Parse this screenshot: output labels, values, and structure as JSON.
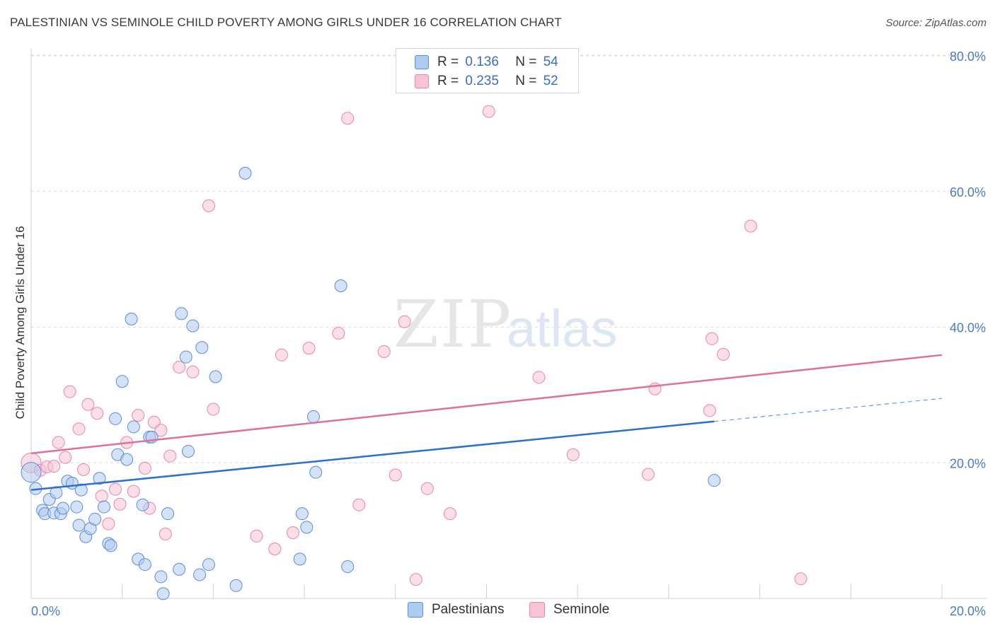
{
  "title": "PALESTINIAN VS SEMINOLE CHILD POVERTY AMONG GIRLS UNDER 16 CORRELATION CHART",
  "source": "Source: ZipAtlas.com",
  "watermark": {
    "zip": "ZIP",
    "atlas": "atlas"
  },
  "legend": {
    "rows": [
      {
        "r_label": "R =",
        "r_value": "0.136",
        "n_label": "N =",
        "n_value": "54"
      },
      {
        "r_label": "R =",
        "r_value": "0.235",
        "n_label": "N =",
        "n_value": "52"
      }
    ]
  },
  "bottom_legend": [
    "Palestinians",
    "Seminole"
  ],
  "colors": {
    "blue_fill": "#aecbf0",
    "blue_stroke": "#5a8fd6",
    "blue_line": "#2f6fd0",
    "pink_fill": "#f8c3d3",
    "pink_stroke": "#e888a8",
    "pink_line": "#e0709a",
    "grid": "#dcdcdc",
    "tick_text": "#4a7cc9"
  },
  "chart_data": {
    "type": "scatter",
    "title": "PALESTINIAN VS SEMINOLE CHILD POVERTY AMONG GIRLS UNDER 16 CORRELATION CHART",
    "xlabel": "",
    "ylabel": "Child Poverty Among Girls Under 16",
    "xlim": [
      0,
      20
    ],
    "ylim": [
      0,
      80
    ],
    "x_tick_labels": [
      "0.0%",
      "20.0%"
    ],
    "y_ticks": [
      20,
      40,
      60,
      80
    ],
    "y_tick_labels": [
      "20.0%",
      "40.0%",
      "60.0%",
      "80.0%"
    ],
    "grid": "horizontal dashed",
    "legend_position": "top-center",
    "series": [
      {
        "name": "Palestinians",
        "r": 0.136,
        "n": 54,
        "trend": {
          "x0": 0,
          "y0": 16.0,
          "x1": 15.0,
          "y1": 26.1,
          "dash_to_x": 20,
          "dash_to_y": 29.5
        },
        "points": [
          [
            0.0,
            18.6
          ],
          [
            0.1,
            16.2
          ],
          [
            0.25,
            13.0
          ],
          [
            0.3,
            12.5
          ],
          [
            0.4,
            14.6
          ],
          [
            0.5,
            12.6
          ],
          [
            0.55,
            15.6
          ],
          [
            0.65,
            12.5
          ],
          [
            0.7,
            13.3
          ],
          [
            0.8,
            17.3
          ],
          [
            0.9,
            17.0
          ],
          [
            1.0,
            13.5
          ],
          [
            1.05,
            10.8
          ],
          [
            1.1,
            16.0
          ],
          [
            1.2,
            9.1
          ],
          [
            1.3,
            10.3
          ],
          [
            1.4,
            11.7
          ],
          [
            1.5,
            17.7
          ],
          [
            1.6,
            13.5
          ],
          [
            1.7,
            8.1
          ],
          [
            1.75,
            7.8
          ],
          [
            1.85,
            26.5
          ],
          [
            1.9,
            21.2
          ],
          [
            2.0,
            32.0
          ],
          [
            2.1,
            20.5
          ],
          [
            2.2,
            41.2
          ],
          [
            2.25,
            25.3
          ],
          [
            2.35,
            5.8
          ],
          [
            2.45,
            13.8
          ],
          [
            2.5,
            5.0
          ],
          [
            2.6,
            23.8
          ],
          [
            2.65,
            23.8
          ],
          [
            2.85,
            3.2
          ],
          [
            2.9,
            0.7
          ],
          [
            3.0,
            12.5
          ],
          [
            3.25,
            4.3
          ],
          [
            3.3,
            42.0
          ],
          [
            3.4,
            35.6
          ],
          [
            3.45,
            21.7
          ],
          [
            3.55,
            40.2
          ],
          [
            3.7,
            3.5
          ],
          [
            3.75,
            37.0
          ],
          [
            3.9,
            5.0
          ],
          [
            4.05,
            32.7
          ],
          [
            4.5,
            1.9
          ],
          [
            4.7,
            62.7
          ],
          [
            5.9,
            5.8
          ],
          [
            5.95,
            12.5
          ],
          [
            6.05,
            10.5
          ],
          [
            6.25,
            18.6
          ],
          [
            6.2,
            26.8
          ],
          [
            6.8,
            46.1
          ],
          [
            6.95,
            4.7
          ],
          [
            15.0,
            17.4
          ]
        ]
      },
      {
        "name": "Seminole",
        "r": 0.235,
        "n": 52,
        "trend": {
          "x0": 0,
          "y0": 21.4,
          "x1": 20,
          "y1": 35.9
        },
        "points": [
          [
            0.0,
            20.0
          ],
          [
            0.2,
            18.9
          ],
          [
            0.35,
            19.4
          ],
          [
            0.5,
            19.5
          ],
          [
            0.6,
            23.0
          ],
          [
            0.75,
            20.8
          ],
          [
            0.85,
            30.5
          ],
          [
            1.05,
            25.0
          ],
          [
            1.15,
            19.0
          ],
          [
            1.25,
            28.6
          ],
          [
            1.45,
            27.3
          ],
          [
            1.55,
            15.1
          ],
          [
            1.7,
            11.0
          ],
          [
            1.85,
            16.1
          ],
          [
            1.95,
            13.9
          ],
          [
            2.1,
            23.0
          ],
          [
            2.25,
            15.8
          ],
          [
            2.35,
            27.0
          ],
          [
            2.5,
            19.2
          ],
          [
            2.6,
            13.3
          ],
          [
            2.7,
            26.0
          ],
          [
            2.85,
            24.8
          ],
          [
            2.95,
            9.5
          ],
          [
            3.05,
            21.0
          ],
          [
            3.25,
            34.1
          ],
          [
            3.55,
            33.4
          ],
          [
            3.9,
            57.9
          ],
          [
            4.0,
            27.9
          ],
          [
            4.95,
            9.2
          ],
          [
            5.35,
            7.3
          ],
          [
            5.5,
            35.9
          ],
          [
            5.75,
            9.7
          ],
          [
            6.1,
            36.9
          ],
          [
            6.75,
            39.1
          ],
          [
            6.95,
            70.8
          ],
          [
            7.2,
            13.8
          ],
          [
            7.75,
            36.4
          ],
          [
            8.0,
            18.2
          ],
          [
            8.2,
            40.8
          ],
          [
            8.45,
            2.8
          ],
          [
            8.7,
            16.2
          ],
          [
            9.2,
            12.5
          ],
          [
            10.05,
            71.8
          ],
          [
            11.15,
            32.6
          ],
          [
            11.9,
            21.2
          ],
          [
            13.55,
            18.3
          ],
          [
            13.7,
            30.9
          ],
          [
            14.9,
            27.7
          ],
          [
            14.95,
            38.3
          ],
          [
            15.2,
            36.0
          ],
          [
            15.8,
            54.9
          ],
          [
            16.9,
            2.9
          ]
        ]
      }
    ]
  }
}
